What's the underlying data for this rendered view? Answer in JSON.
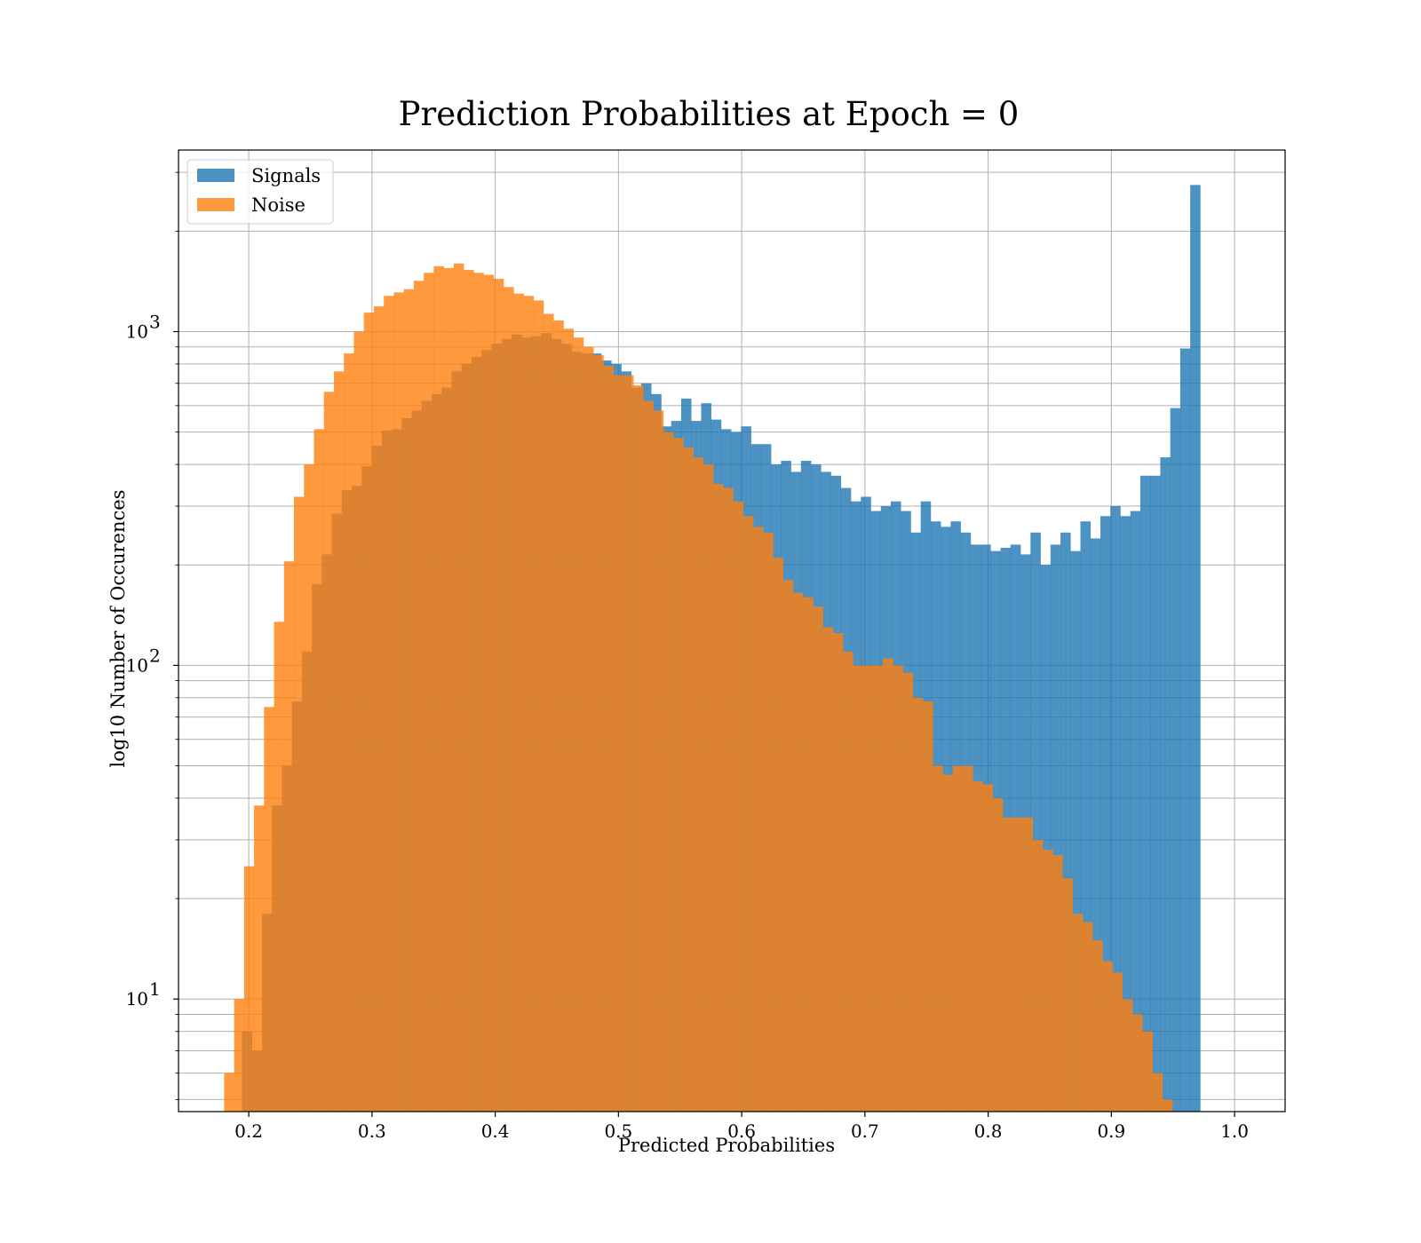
{
  "chart_data": {
    "type": "bar",
    "title": "Prediction Probabilities at Epoch = 0",
    "xlabel": "Predicted Probabilities",
    "ylabel": "log10 Number of Occurences",
    "xlim": [
      0.143,
      1.041
    ],
    "ylim": [
      4.6,
      3500
    ],
    "yscale": "log",
    "grid": true,
    "legend_position": "top-left",
    "x_ticks": [
      0.2,
      0.3,
      0.4,
      0.5,
      0.6,
      0.7,
      0.8,
      0.9,
      1.0
    ],
    "x_tick_labels": [
      "0.2",
      "0.3",
      "0.4",
      "0.5",
      "0.6",
      "0.7",
      "0.8",
      "0.9",
      "1.0"
    ],
    "y_ticks": [
      10,
      100,
      1000
    ],
    "y_tick_labels": [
      {
        "base": "10",
        "exp": "1"
      },
      {
        "base": "10",
        "exp": "2"
      },
      {
        "base": "10",
        "exp": "3"
      }
    ],
    "series": [
      {
        "name": "Signals",
        "color": "#1f77b4",
        "bin_start": 0.1945,
        "bin_width": 0.0081,
        "values": [
          8,
          7,
          18,
          38,
          50,
          78,
          110,
          175,
          215,
          285,
          335,
          345,
          395,
          455,
          505,
          510,
          550,
          580,
          620,
          650,
          680,
          760,
          800,
          840,
          880,
          920,
          950,
          980,
          960,
          970,
          990,
          950,
          920,
          870,
          860,
          860,
          820,
          800,
          760,
          680,
          700,
          650,
          520,
          540,
          630,
          540,
          610,
          545,
          510,
          500,
          520,
          460,
          460,
          400,
          410,
          380,
          410,
          400,
          380,
          370,
          340,
          310,
          320,
          290,
          300,
          310,
          290,
          250,
          310,
          270,
          260,
          270,
          250,
          230,
          230,
          220,
          225,
          230,
          215,
          250,
          200,
          230,
          250,
          220,
          270,
          240,
          280,
          300,
          280,
          290,
          370,
          370,
          420,
          590,
          890,
          2750
        ]
      },
      {
        "name": "Noise",
        "color": "#ff7f0e",
        "bin_start": 0.18,
        "bin_width": 0.0081,
        "values": [
          6,
          10,
          25,
          38,
          75,
          135,
          205,
          320,
          400,
          510,
          660,
          760,
          860,
          1000,
          1140,
          1190,
          1280,
          1310,
          1340,
          1420,
          1500,
          1570,
          1550,
          1600,
          1530,
          1500,
          1480,
          1440,
          1360,
          1300,
          1280,
          1240,
          1130,
          1080,
          1020,
          960,
          900,
          850,
          790,
          740,
          740,
          690,
          620,
          580,
          500,
          480,
          450,
          420,
          400,
          350,
          340,
          310,
          280,
          260,
          250,
          210,
          180,
          165,
          160,
          150,
          130,
          125,
          110,
          100,
          100,
          100,
          105,
          100,
          95,
          80,
          78,
          50,
          47,
          50,
          50,
          45,
          44,
          40,
          35,
          35,
          35,
          30,
          28,
          27,
          23,
          18,
          17,
          15,
          13,
          12,
          10,
          9,
          8,
          6,
          5
        ]
      }
    ]
  },
  "legend": {
    "items": [
      {
        "label": "Signals",
        "color": "#1f77b4"
      },
      {
        "label": "Noise",
        "color": "#ff7f0e"
      }
    ]
  }
}
